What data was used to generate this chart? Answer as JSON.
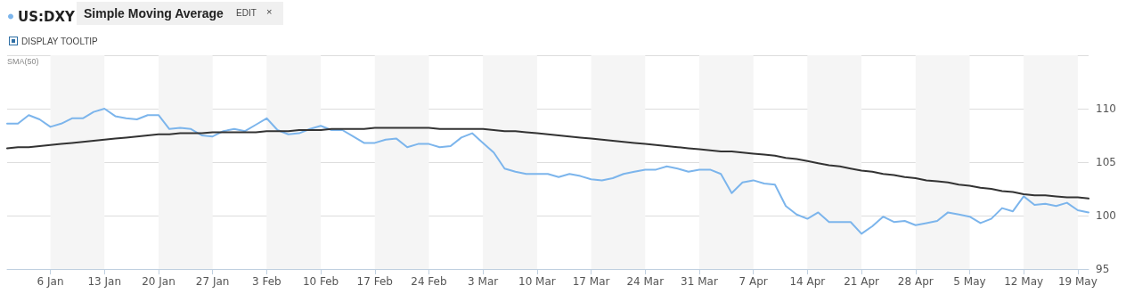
{
  "chart_data": {
    "type": "line",
    "title": "Simple Moving Average",
    "annotations": [
      "EDIT",
      "×",
      "DISPLAY TOOLTIP",
      "SMA(50)"
    ],
    "categories": [
      null,
      null,
      null,
      null,
      "6 Jan",
      null,
      null,
      null,
      null,
      "13 Jan",
      null,
      null,
      null,
      null,
      "20 Jan",
      null,
      null,
      null,
      null,
      "27 Jan",
      null,
      null,
      null,
      null,
      "3 Feb",
      null,
      null,
      null,
      null,
      "10 Feb",
      null,
      null,
      null,
      null,
      "17 Feb",
      null,
      null,
      null,
      null,
      "24 Feb",
      null,
      null,
      null,
      null,
      "3 Mar",
      null,
      null,
      null,
      null,
      "10 Mar",
      null,
      null,
      null,
      null,
      "17 Mar",
      null,
      null,
      null,
      null,
      "24 Mar",
      null,
      null,
      null,
      null,
      "31 Mar",
      null,
      null,
      null,
      null,
      "7 Apr",
      null,
      null,
      null,
      null,
      "14 Apr",
      null,
      null,
      null,
      null,
      "21 Apr",
      null,
      null,
      null,
      null,
      "28 Apr",
      null,
      null,
      null,
      null,
      "5 May",
      null,
      null,
      null,
      null,
      "12 May",
      null,
      null,
      null,
      null,
      "19 May",
      null
    ],
    "series": [
      {
        "name": "US:DXY",
        "color": "#7cb5ec",
        "values": [
          108.6,
          108.6,
          109.4,
          109.0,
          108.3,
          108.6,
          109.1,
          109.1,
          109.7,
          110.0,
          109.3,
          109.1,
          109.0,
          109.4,
          109.4,
          108.1,
          108.2,
          108.1,
          107.5,
          107.4,
          107.9,
          108.1,
          107.9,
          108.5,
          109.1,
          108.0,
          107.6,
          107.7,
          108.1,
          108.4,
          108.0,
          108.0,
          107.4,
          106.8,
          106.8,
          107.1,
          107.2,
          106.4,
          106.7,
          106.7,
          106.4,
          106.5,
          107.3,
          107.7,
          106.8,
          105.9,
          104.4,
          104.1,
          103.9,
          103.9,
          103.9,
          103.6,
          103.9,
          103.7,
          103.4,
          103.3,
          103.5,
          103.9,
          104.1,
          104.3,
          104.3,
          104.6,
          104.4,
          104.1,
          104.3,
          104.3,
          103.9,
          102.1,
          103.1,
          103.3,
          103.0,
          102.9,
          100.9,
          100.1,
          99.7,
          100.3,
          99.4,
          99.4,
          99.4,
          98.3,
          99.0,
          99.9,
          99.4,
          99.5,
          99.1,
          99.3,
          99.5,
          100.3,
          100.1,
          99.9,
          99.3,
          99.7,
          100.7,
          100.4,
          101.8,
          101.0,
          101.1,
          100.9,
          101.2,
          100.5,
          100.3
        ]
      },
      {
        "color": "#333333",
        "values": [
          106.3,
          106.4,
          106.4,
          106.5,
          106.6,
          106.7,
          106.8,
          106.9,
          107.0,
          107.1,
          107.2,
          107.3,
          107.4,
          107.5,
          107.6,
          107.6,
          107.7,
          107.7,
          107.7,
          107.8,
          107.8,
          107.8,
          107.8,
          107.8,
          107.9,
          107.9,
          107.9,
          108.0,
          108.0,
          108.0,
          108.1,
          108.1,
          108.1,
          108.1,
          108.2,
          108.2,
          108.2,
          108.2,
          108.2,
          108.2,
          108.1,
          108.1,
          108.1,
          108.1,
          108.1,
          108.0,
          107.9,
          107.9,
          107.8,
          107.7,
          107.6,
          107.5,
          107.4,
          107.3,
          107.2,
          107.1,
          107.0,
          106.9,
          106.8,
          106.7,
          106.6,
          106.5,
          106.4,
          106.3,
          106.2,
          106.1,
          106.0,
          106.0,
          105.9,
          105.8,
          105.7,
          105.6,
          105.4,
          105.3,
          105.1,
          104.9,
          104.7,
          104.6,
          104.4,
          104.2,
          104.1,
          103.9,
          103.8,
          103.6,
          103.5,
          103.3,
          103.2,
          103.1,
          102.9,
          102.8,
          102.6,
          102.5,
          102.3,
          102.2,
          102.0,
          101.9,
          101.9,
          101.8,
          101.7,
          101.7,
          101.6
        ]
      }
    ],
    "ylim": [
      95,
      115
    ],
    "yticks": [
      95,
      100,
      105,
      110,
      {
        "value": 115,
        "label": null
      }
    ],
    "bands": [
      {
        "axis": "x",
        "from": "6 Jan",
        "to": "13 Jan",
        "color": "#f5f5f5"
      },
      {
        "axis": "x",
        "from": "20 Jan",
        "to": "27 Jan",
        "color": "#f5f5f5"
      },
      {
        "axis": "x",
        "from": "3 Feb",
        "to": "10 Feb",
        "color": "#f5f5f5"
      },
      {
        "axis": "x",
        "from": "17 Feb",
        "to": "24 Feb",
        "color": "#f5f5f5"
      },
      {
        "axis": "x",
        "from": "3 Mar",
        "to": "10 Mar",
        "color": "#f5f5f5"
      },
      {
        "axis": "x",
        "from": "17 Mar",
        "to": "24 Mar",
        "color": "#f5f5f5"
      },
      {
        "axis": "x",
        "from": "31 Mar",
        "to": "7 Apr",
        "color": "#f5f5f5"
      },
      {
        "axis": "x",
        "from": "14 Apr",
        "to": "21 Apr",
        "color": "#f5f5f5"
      },
      {
        "axis": "x",
        "from": "28 Apr",
        "to": "5 May",
        "color": "#f5f5f5"
      },
      {
        "axis": "x",
        "from": "12 May",
        "to": "19 May",
        "color": "#f5f5f5"
      }
    ],
    "grid": "y",
    "legend": "top left",
    "marker": "none",
    "line_style": "solid"
  }
}
